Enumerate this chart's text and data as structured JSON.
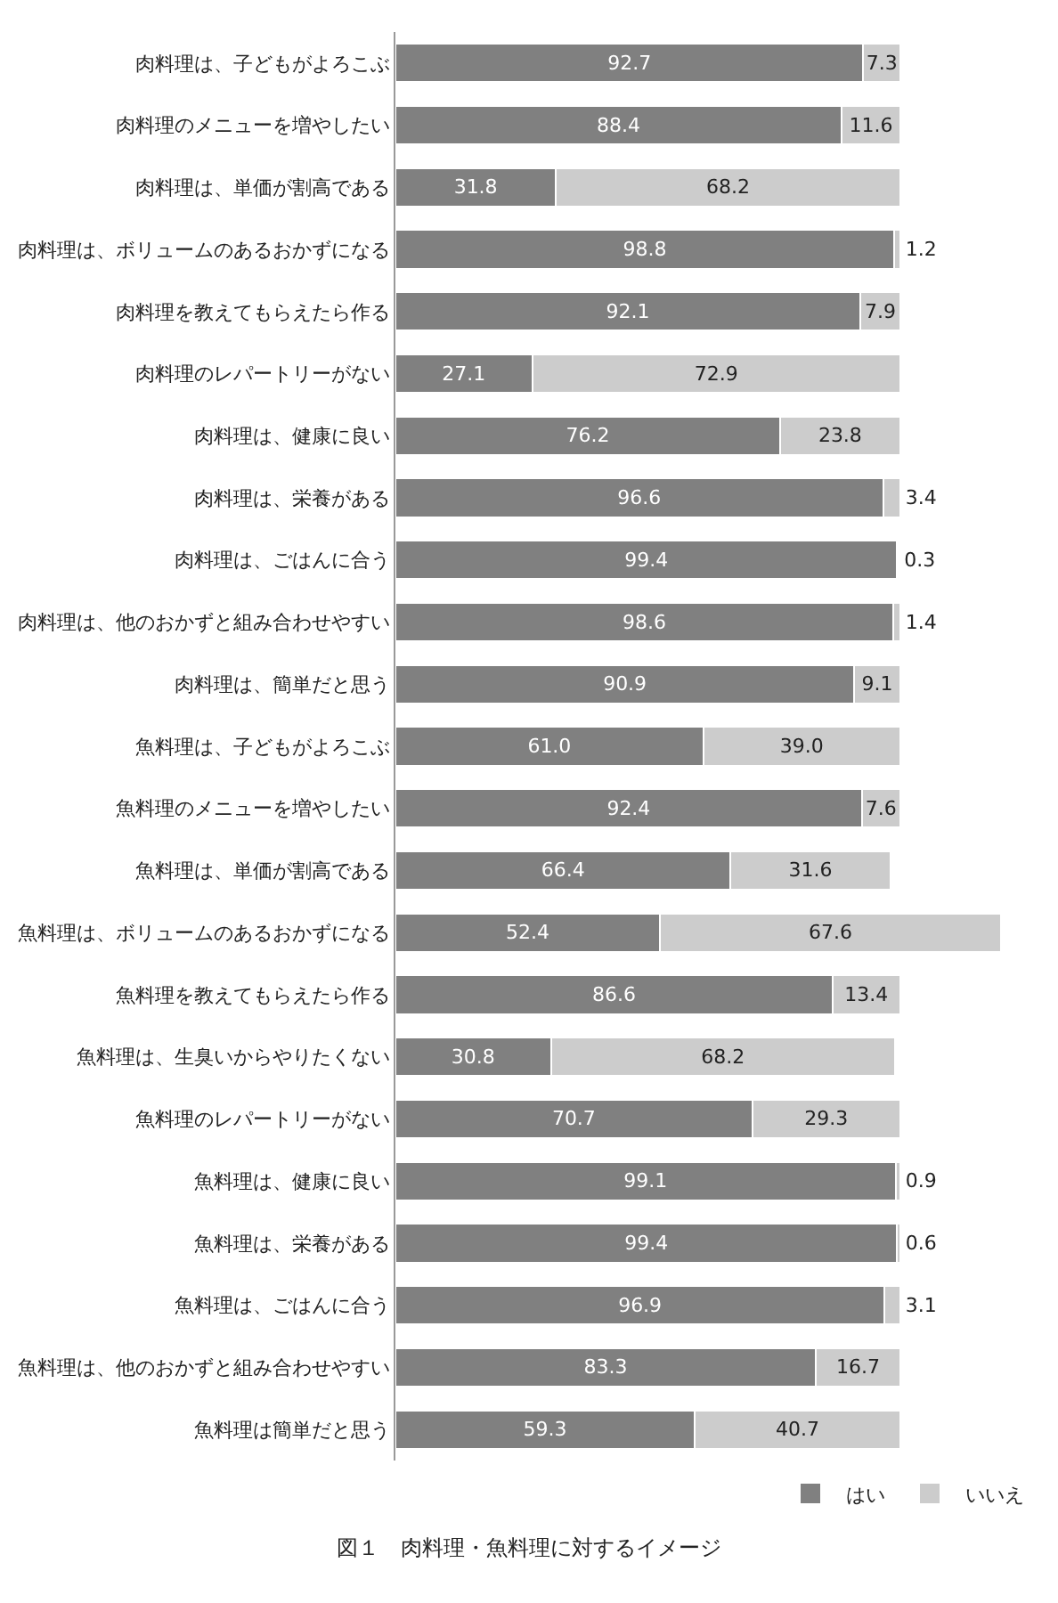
{
  "chart_data": {
    "type": "bar",
    "orientation": "horizontal",
    "stacked": true,
    "legend": "bottom right",
    "title": "図１　肉料理・魚料理に対するイメージ",
    "categories": [
      "肉料理は、子どもがよろこぶ",
      "肉料理のメニューを増やしたい",
      "肉料理は、単価が割高である",
      "肉料理は、ボリュームのあるおかずになる",
      "肉料理を教えてもらえたら作る",
      "肉料理のレパートリーがない",
      "肉料理は、健康に良い",
      "肉料理は、栄養がある",
      "肉料理は、ごはんに合う",
      "肉料理は、他のおかずと組み合わせやすい",
      "肉料理は、簡単だと思う",
      "魚料理は、子どもがよろこぶ",
      "魚料理のメニューを増やしたい",
      "魚料理は、単価が割高である",
      "魚料理は、ボリュームのあるおかずになる",
      "魚料理を教えてもらえたら作る",
      "魚料理は、生臭いからやりたくない",
      "魚料理のレパートリーがない",
      "魚料理は、健康に良い",
      "魚料理は、栄養がある",
      "魚料理は、ごはんに合う",
      "魚料理は、他のおかずと組み合わせやすい",
      "魚料理は簡単だと思う"
    ],
    "series": [
      {
        "name": "はい",
        "color": "#808080",
        "values": [
          92.7,
          88.4,
          31.8,
          98.8,
          92.1,
          27.1,
          76.2,
          96.6,
          99.4,
          98.6,
          90.9,
          61.0,
          92.4,
          66.4,
          52.4,
          86.6,
          30.8,
          70.7,
          99.1,
          99.4,
          96.9,
          83.3,
          59.3
        ],
        "value_labels": [
          "92.7",
          "88.4",
          "31.8",
          "98.8",
          "92.1",
          "27.1",
          "76.2",
          "96.6",
          "99.4",
          "98.6",
          "90.9",
          "61.0",
          "92.4",
          "66.4",
          "52.4",
          "86.6",
          "30.8",
          "70.7",
          "99.1",
          "99.4",
          "96.9",
          "83.3",
          "59.3"
        ]
      },
      {
        "name": "いいえ",
        "color": "#cccccc",
        "values": [
          7.3,
          11.6,
          68.2,
          1.2,
          7.9,
          72.9,
          23.8,
          3.4,
          0.3,
          1.4,
          9.1,
          39.0,
          7.6,
          31.6,
          67.6,
          13.4,
          68.2,
          29.3,
          0.9,
          0.6,
          3.1,
          16.7,
          40.7
        ],
        "value_labels": [
          "7.3",
          "11.6",
          "68.2",
          "1.2",
          "7.9",
          "72.9",
          "23.8",
          "3.4",
          "0.3",
          "1.4",
          "9.1",
          "39.0",
          "7.6",
          "31.6",
          "67.6",
          "13.4",
          "68.2",
          "29.3",
          "0.9",
          "0.6",
          "3.1",
          "16.7",
          "40.7"
        ]
      }
    ]
  }
}
